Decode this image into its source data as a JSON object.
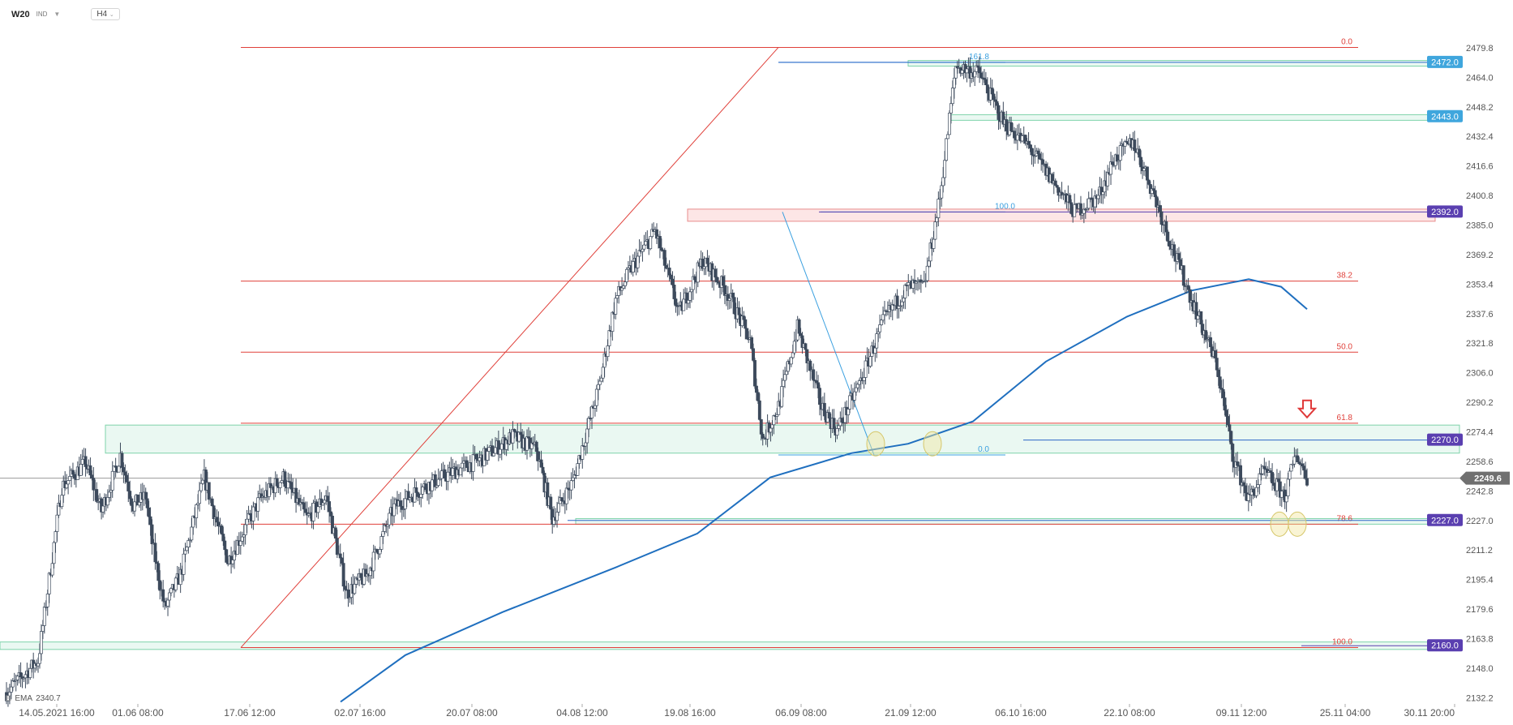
{
  "header": {
    "symbol": "W20",
    "instrument_type": "IND",
    "timeframe": "H4"
  },
  "indicator": {
    "name": "EMA",
    "value": "2340.7"
  },
  "colors": {
    "bull": "#ffffff",
    "bear": "#3d4a5c",
    "wick": "#3d4a5c",
    "ema": "#1f6fbf",
    "fib": "#e0403a",
    "zone_fill": "#e3f6ee",
    "zone_border": "#7fd3ab",
    "pink_fill": "#fde6e6",
    "pink_border": "#e88c8c",
    "blue_line": "#2c67c7",
    "blue_fib": "#3aa0e0",
    "tag_blue": "#3fa6dd",
    "tag_purple": "#5a3fb0",
    "tag_gray": "#707070",
    "arrow": "#e03a3a",
    "circle": "#f2e7a0"
  },
  "chart_data": {
    "type": "candlestick",
    "title": "W20",
    "timeframe": "H4",
    "ylim": [
      2128,
      2488
    ],
    "y_ticks": [
      "2479.8",
      "2464.0",
      "2448.2",
      "2432.4",
      "2416.6",
      "2400.8",
      "2385.0",
      "2369.2",
      "2353.4",
      "2337.6",
      "2321.8",
      "2306.0",
      "2290.2",
      "2274.4",
      "2258.6",
      "2242.8",
      "2227.0",
      "2211.2",
      "2195.4",
      "2179.6",
      "2163.8",
      "2148.0",
      "2132.2"
    ],
    "x_ticks": [
      "14.05.2021 16:00",
      "01.06 08:00",
      "17.06 12:00",
      "02.07 16:00",
      "20.07 08:00",
      "04.08 12:00",
      "19.08 16:00",
      "06.09 08:00",
      "21.09 12:00",
      "06.10 16:00",
      "22.10 08:00",
      "09.11 12:00",
      "25.11 04:00",
      "30.11 20:00"
    ],
    "last_price": "2249.6",
    "price_tags": [
      {
        "value": "2472.0",
        "style": "blue"
      },
      {
        "value": "2443.0",
        "style": "blue"
      },
      {
        "value": "2392.0",
        "style": "purple"
      },
      {
        "value": "2270.0",
        "style": "purple"
      },
      {
        "value": "2227.0",
        "style": "purple"
      },
      {
        "value": "2160.0",
        "style": "purple"
      }
    ],
    "fib_main": [
      {
        "level": "0.0",
        "price": 2480
      },
      {
        "level": "38.2",
        "price": 2355
      },
      {
        "level": "50.0",
        "price": 2317
      },
      {
        "level": "61.8",
        "price": 2279
      },
      {
        "level": "78.6",
        "price": 2225
      },
      {
        "level": "100.0",
        "price": 2159
      }
    ],
    "fib_secondary": [
      {
        "level": "161.8",
        "price": 2472
      },
      {
        "level": "100.0",
        "price": 2392
      },
      {
        "level": "0.0",
        "price": 2262
      }
    ],
    "zones": [
      {
        "from": 2263,
        "to": 2278
      },
      {
        "from": 2441,
        "to": 2444
      },
      {
        "from": 2470,
        "to": 2473
      },
      {
        "from": 2225,
        "to": 2228
      },
      {
        "from": 2158,
        "to": 2162
      }
    ],
    "ema": {
      "period": 200,
      "value": 2340.7
    },
    "candles_anchor_path": [
      [
        0,
        2135
      ],
      [
        20,
        2152
      ],
      [
        35,
        2245
      ],
      [
        50,
        2258
      ],
      [
        60,
        2232
      ],
      [
        72,
        2262
      ],
      [
        80,
        2235
      ],
      [
        88,
        2240
      ],
      [
        92,
        2215
      ],
      [
        100,
        2180
      ],
      [
        110,
        2198
      ],
      [
        125,
        2250
      ],
      [
        140,
        2205
      ],
      [
        160,
        2238
      ],
      [
        175,
        2250
      ],
      [
        190,
        2228
      ],
      [
        202,
        2240
      ],
      [
        215,
        2188
      ],
      [
        228,
        2198
      ],
      [
        245,
        2234
      ],
      [
        260,
        2243
      ],
      [
        280,
        2252
      ],
      [
        300,
        2260
      ],
      [
        320,
        2272
      ],
      [
        335,
        2265
      ],
      [
        345,
        2228
      ],
      [
        358,
        2248
      ],
      [
        375,
        2300
      ],
      [
        385,
        2345
      ],
      [
        395,
        2362
      ],
      [
        410,
        2382
      ],
      [
        425,
        2338
      ],
      [
        440,
        2366
      ],
      [
        455,
        2350
      ],
      [
        470,
        2323
      ],
      [
        478,
        2270
      ],
      [
        488,
        2288
      ],
      [
        500,
        2330
      ],
      [
        515,
        2288
      ],
      [
        525,
        2275
      ],
      [
        540,
        2302
      ],
      [
        555,
        2335
      ],
      [
        570,
        2352
      ],
      [
        580,
        2352
      ],
      [
        590,
        2400
      ],
      [
        600,
        2470
      ],
      [
        615,
        2466
      ],
      [
        630,
        2440
      ],
      [
        645,
        2428
      ],
      [
        660,
        2410
      ],
      [
        675,
        2392
      ],
      [
        690,
        2400
      ],
      [
        700,
        2420
      ],
      [
        712,
        2430
      ],
      [
        725,
        2402
      ],
      [
        738,
        2370
      ],
      [
        755,
        2332
      ],
      [
        765,
        2310
      ],
      [
        775,
        2262
      ],
      [
        785,
        2238
      ],
      [
        795,
        2253
      ],
      [
        808,
        2240
      ],
      [
        815,
        2263
      ],
      [
        822,
        2250
      ]
    ]
  }
}
